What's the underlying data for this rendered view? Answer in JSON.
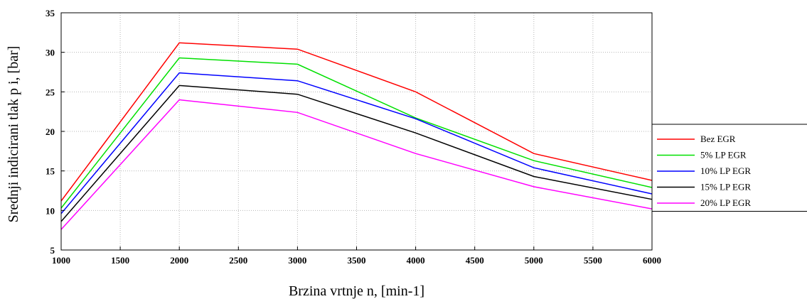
{
  "chart_data": {
    "type": "line",
    "title": "",
    "xlabel": "Brzina vrtnje n, [min-1]",
    "ylabel": "Srednji indicirani tlak p i, [bar]",
    "xlim": [
      1000,
      6000
    ],
    "ylim": [
      5,
      35
    ],
    "xticks": [
      1000,
      1500,
      2000,
      2500,
      3000,
      3500,
      4000,
      4500,
      5000,
      5500,
      6000
    ],
    "yticks": [
      5,
      10,
      15,
      20,
      25,
      30,
      35
    ],
    "grid": true,
    "legend_position": "right",
    "x": [
      1000,
      2000,
      3000,
      4000,
      5000,
      6000
    ],
    "series": [
      {
        "name": "Bez EGR",
        "color": "#ff0000",
        "values": [
          11.2,
          31.2,
          30.4,
          25.0,
          17.2,
          13.8
        ]
      },
      {
        "name": "5% LP EGR",
        "color": "#00e000",
        "values": [
          10.3,
          29.3,
          28.5,
          21.7,
          16.3,
          12.9
        ]
      },
      {
        "name": "10% LP EGR",
        "color": "#0000ff",
        "values": [
          9.6,
          27.4,
          26.4,
          21.6,
          15.4,
          12.1
        ]
      },
      {
        "name": "15% LP EGR",
        "color": "#000000",
        "values": [
          8.6,
          25.8,
          24.7,
          19.8,
          14.3,
          11.4
        ]
      },
      {
        "name": "20% LP EGR",
        "color": "#ff00ff",
        "values": [
          7.6,
          24.0,
          22.4,
          17.2,
          13.0,
          10.2
        ]
      }
    ]
  }
}
